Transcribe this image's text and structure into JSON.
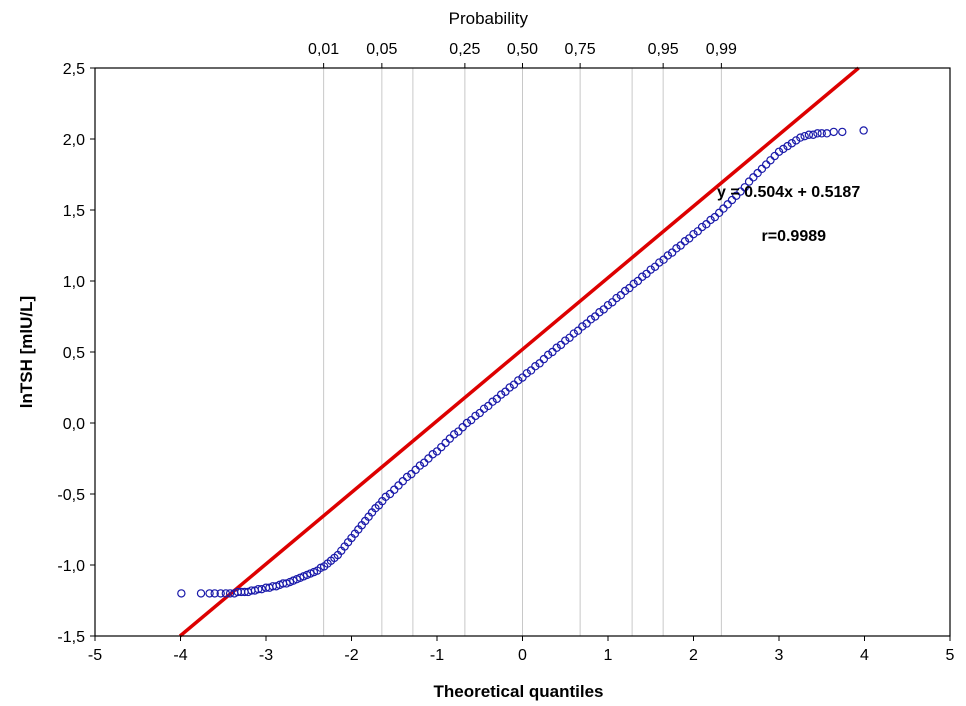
{
  "chart_data": {
    "type": "scatter",
    "title": "",
    "xlabel": "Theoretical quantiles",
    "ylabel": "lnTSH [mlU/L]",
    "top_axis_label": "Probability",
    "xlim": [
      -5,
      5
    ],
    "ylim": [
      -1.5,
      2.5
    ],
    "x_ticks": [
      -5,
      -4,
      -3,
      -2,
      -1,
      0,
      1,
      2,
      3,
      4,
      5
    ],
    "x_tick_labels": [
      "-5",
      "-4",
      "-3",
      "-2",
      "-1",
      "0",
      "1",
      "2",
      "3",
      "4",
      "5"
    ],
    "y_ticks": [
      -1.5,
      -1.0,
      -0.5,
      0.0,
      0.5,
      1.0,
      1.5,
      2.0,
      2.5
    ],
    "y_tick_labels": [
      "-1,5",
      "-1,0",
      "-0,5",
      "0,0",
      "0,5",
      "1,0",
      "1,5",
      "2,0",
      "2,5"
    ],
    "probability_ticks": [
      {
        "label": "0,01",
        "quantile": -2.326
      },
      {
        "label": "0,05",
        "quantile": -1.645
      },
      {
        "label": "0,25",
        "quantile": -0.674
      },
      {
        "label": "0,50",
        "quantile": 0.0
      },
      {
        "label": "0,75",
        "quantile": 0.674
      },
      {
        "label": "0,95",
        "quantile": 1.645
      },
      {
        "label": "0,99",
        "quantile": 2.326
      }
    ],
    "probability_gridlines": [
      -2.326,
      -1.645,
      -1.282,
      -0.674,
      0.0,
      0.674,
      1.282,
      1.645,
      2.326
    ],
    "fit_line": {
      "slope": 0.504,
      "intercept": 0.5187,
      "color": "#dd0000"
    },
    "series": [
      {
        "marker": "circle-open",
        "color": "#1a1aaa",
        "points": [
          [
            -3.99,
            -1.2
          ],
          [
            -3.76,
            -1.2
          ],
          [
            -3.66,
            -1.2
          ],
          [
            -3.6,
            -1.2
          ],
          [
            -3.53,
            -1.2
          ],
          [
            -3.47,
            -1.2
          ],
          [
            -3.42,
            -1.2
          ],
          [
            -3.37,
            -1.2
          ],
          [
            -3.33,
            -1.19
          ],
          [
            -3.29,
            -1.19
          ],
          [
            -3.25,
            -1.19
          ],
          [
            -3.21,
            -1.19
          ],
          [
            -3.17,
            -1.18
          ],
          [
            -3.13,
            -1.18
          ],
          [
            -3.09,
            -1.17
          ],
          [
            -3.05,
            -1.17
          ],
          [
            -3.0,
            -1.16
          ],
          [
            -2.96,
            -1.16
          ],
          [
            -2.92,
            -1.15
          ],
          [
            -2.88,
            -1.15
          ],
          [
            -2.84,
            -1.14
          ],
          [
            -2.8,
            -1.13
          ],
          [
            -2.76,
            -1.13
          ],
          [
            -2.72,
            -1.12
          ],
          [
            -2.68,
            -1.11
          ],
          [
            -2.64,
            -1.1
          ],
          [
            -2.6,
            -1.09
          ],
          [
            -2.56,
            -1.08
          ],
          [
            -2.52,
            -1.07
          ],
          [
            -2.48,
            -1.06
          ],
          [
            -2.44,
            -1.05
          ],
          [
            -2.4,
            -1.04
          ],
          [
            -2.36,
            -1.02
          ],
          [
            -2.32,
            -1.01
          ],
          [
            -2.28,
            -0.99
          ],
          [
            -2.24,
            -0.97
          ],
          [
            -2.2,
            -0.95
          ],
          [
            -2.16,
            -0.93
          ],
          [
            -2.12,
            -0.9
          ],
          [
            -2.08,
            -0.87
          ],
          [
            -2.04,
            -0.84
          ],
          [
            -2.0,
            -0.81
          ],
          [
            -1.96,
            -0.78
          ],
          [
            -1.92,
            -0.75
          ],
          [
            -1.88,
            -0.72
          ],
          [
            -1.84,
            -0.69
          ],
          [
            -1.8,
            -0.66
          ],
          [
            -1.76,
            -0.63
          ],
          [
            -1.72,
            -0.6
          ],
          [
            -1.68,
            -0.58
          ],
          [
            -1.64,
            -0.55
          ],
          [
            -1.6,
            -0.52
          ],
          [
            -1.55,
            -0.5
          ],
          [
            -1.5,
            -0.47
          ],
          [
            -1.45,
            -0.44
          ],
          [
            -1.4,
            -0.41
          ],
          [
            -1.35,
            -0.38
          ],
          [
            -1.3,
            -0.36
          ],
          [
            -1.25,
            -0.33
          ],
          [
            -1.2,
            -0.3
          ],
          [
            -1.15,
            -0.28
          ],
          [
            -1.1,
            -0.25
          ],
          [
            -1.05,
            -0.22
          ],
          [
            -1.0,
            -0.2
          ],
          [
            -0.95,
            -0.17
          ],
          [
            -0.9,
            -0.14
          ],
          [
            -0.85,
            -0.11
          ],
          [
            -0.8,
            -0.08
          ],
          [
            -0.75,
            -0.06
          ],
          [
            -0.7,
            -0.03
          ],
          [
            -0.65,
            0.0
          ],
          [
            -0.6,
            0.02
          ],
          [
            -0.55,
            0.05
          ],
          [
            -0.5,
            0.07
          ],
          [
            -0.45,
            0.1
          ],
          [
            -0.4,
            0.12
          ],
          [
            -0.35,
            0.15
          ],
          [
            -0.3,
            0.17
          ],
          [
            -0.25,
            0.2
          ],
          [
            -0.2,
            0.22
          ],
          [
            -0.15,
            0.25
          ],
          [
            -0.1,
            0.27
          ],
          [
            -0.05,
            0.3
          ],
          [
            0.0,
            0.32
          ],
          [
            0.05,
            0.35
          ],
          [
            0.1,
            0.37
          ],
          [
            0.15,
            0.4
          ],
          [
            0.2,
            0.42
          ],
          [
            0.25,
            0.45
          ],
          [
            0.3,
            0.48
          ],
          [
            0.35,
            0.5
          ],
          [
            0.4,
            0.53
          ],
          [
            0.45,
            0.55
          ],
          [
            0.5,
            0.58
          ],
          [
            0.55,
            0.6
          ],
          [
            0.6,
            0.63
          ],
          [
            0.65,
            0.65
          ],
          [
            0.7,
            0.68
          ],
          [
            0.75,
            0.7
          ],
          [
            0.8,
            0.73
          ],
          [
            0.85,
            0.75
          ],
          [
            0.9,
            0.78
          ],
          [
            0.95,
            0.8
          ],
          [
            1.0,
            0.83
          ],
          [
            1.05,
            0.85
          ],
          [
            1.1,
            0.88
          ],
          [
            1.15,
            0.9
          ],
          [
            1.2,
            0.93
          ],
          [
            1.25,
            0.95
          ],
          [
            1.3,
            0.98
          ],
          [
            1.35,
            1.0
          ],
          [
            1.4,
            1.03
          ],
          [
            1.45,
            1.05
          ],
          [
            1.5,
            1.08
          ],
          [
            1.55,
            1.1
          ],
          [
            1.6,
            1.13
          ],
          [
            1.65,
            1.15
          ],
          [
            1.7,
            1.18
          ],
          [
            1.75,
            1.2
          ],
          [
            1.8,
            1.23
          ],
          [
            1.85,
            1.25
          ],
          [
            1.9,
            1.28
          ],
          [
            1.95,
            1.3
          ],
          [
            2.0,
            1.33
          ],
          [
            2.05,
            1.35
          ],
          [
            2.1,
            1.38
          ],
          [
            2.15,
            1.4
          ],
          [
            2.2,
            1.43
          ],
          [
            2.25,
            1.45
          ],
          [
            2.3,
            1.48
          ],
          [
            2.35,
            1.51
          ],
          [
            2.4,
            1.54
          ],
          [
            2.45,
            1.57
          ],
          [
            2.5,
            1.6
          ],
          [
            2.55,
            1.63
          ],
          [
            2.6,
            1.66
          ],
          [
            2.65,
            1.7
          ],
          [
            2.7,
            1.73
          ],
          [
            2.75,
            1.76
          ],
          [
            2.8,
            1.79
          ],
          [
            2.85,
            1.82
          ],
          [
            2.9,
            1.85
          ],
          [
            2.95,
            1.88
          ],
          [
            3.0,
            1.91
          ],
          [
            3.05,
            1.93
          ],
          [
            3.1,
            1.95
          ],
          [
            3.15,
            1.97
          ],
          [
            3.2,
            1.99
          ],
          [
            3.25,
            2.01
          ],
          [
            3.3,
            2.02
          ],
          [
            3.35,
            2.03
          ],
          [
            3.4,
            2.03
          ],
          [
            3.45,
            2.04
          ],
          [
            3.5,
            2.04
          ],
          [
            3.56,
            2.04
          ],
          [
            3.64,
            2.05
          ],
          [
            3.74,
            2.05
          ],
          [
            3.99,
            2.06
          ]
        ]
      }
    ],
    "annotations": [
      {
        "text": "y = 0.504x + 0.5187",
        "x": 3.95,
        "y": 1.59
      },
      {
        "text": "r=0.9989",
        "x": 3.55,
        "y": 1.28
      }
    ]
  }
}
